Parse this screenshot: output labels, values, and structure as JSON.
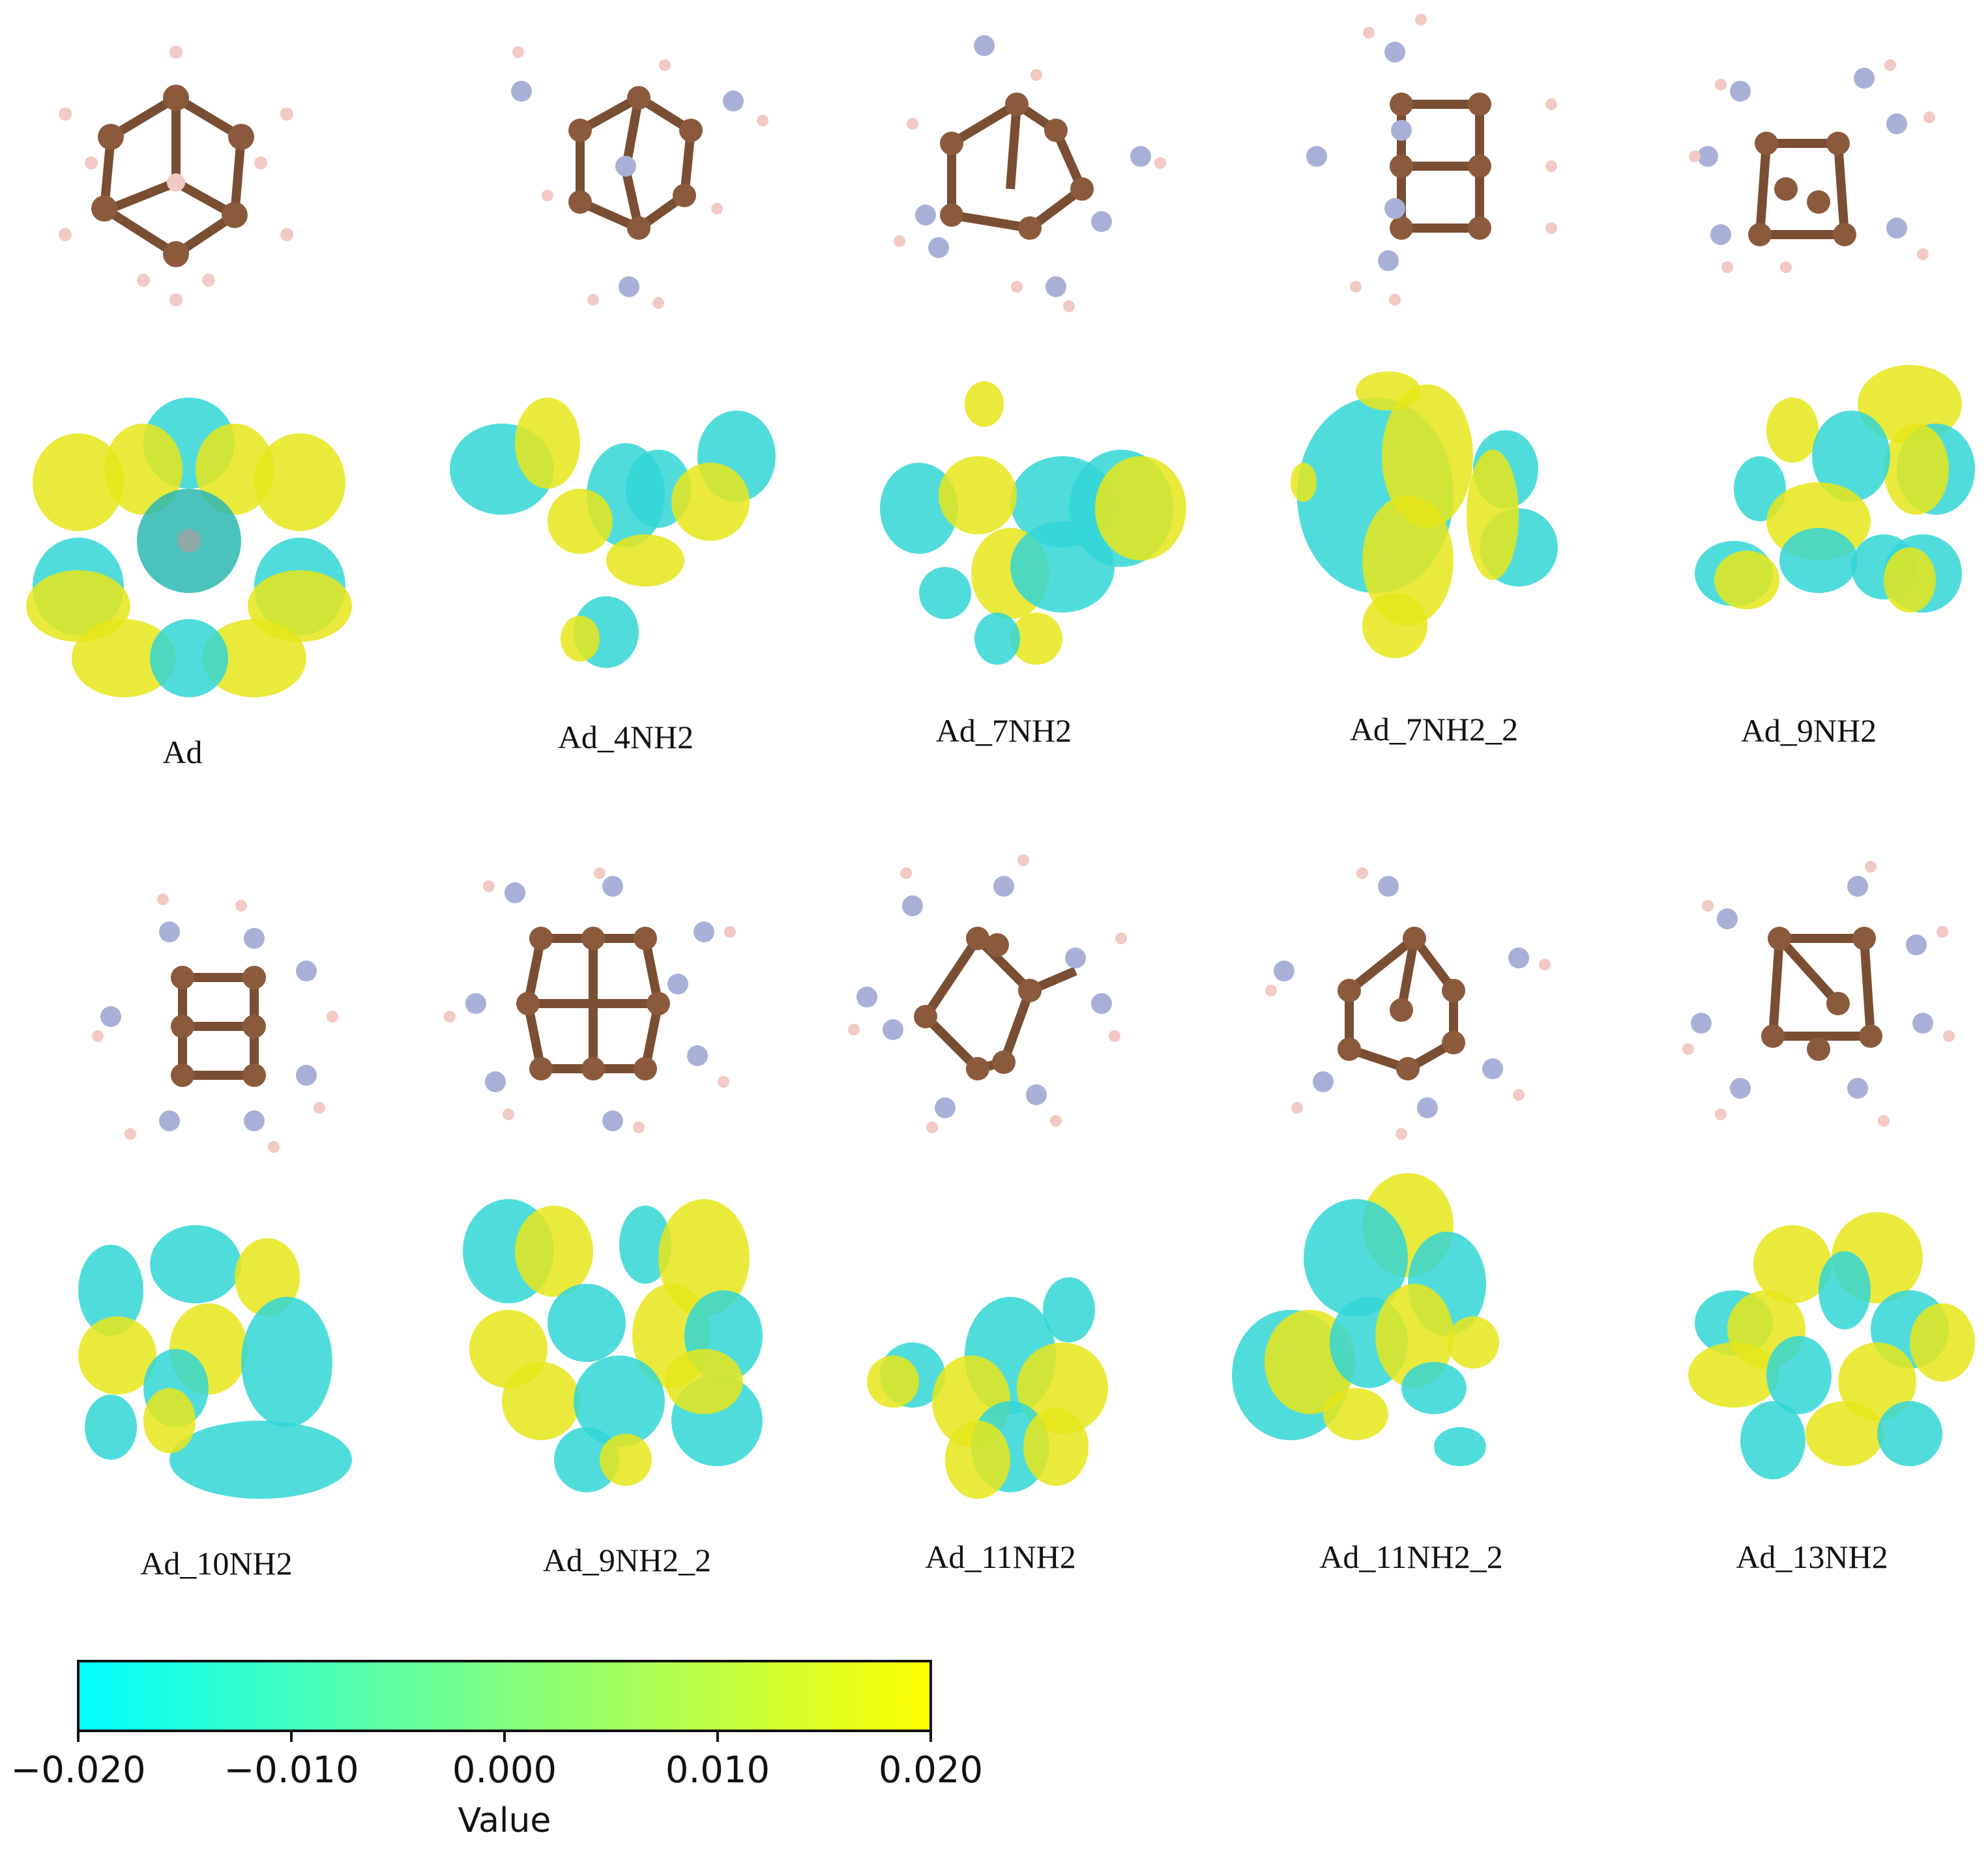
{
  "molecules": [
    {
      "label": "Ad"
    },
    {
      "label": "Ad_4NH2"
    },
    {
      "label": "Ad_7NH2"
    },
    {
      "label": "Ad_7NH2_2"
    },
    {
      "label": "Ad_9NH2"
    },
    {
      "label": "Ad_10NH2"
    },
    {
      "label": "Ad_9NH2_2"
    },
    {
      "label": "Ad_11NH2"
    },
    {
      "label": "Ad_11NH2_2"
    },
    {
      "label": "Ad_13NH2"
    }
  ],
  "colorbar": {
    "title": "Value",
    "ticks": [
      "−0.020",
      "−0.010",
      "0.000",
      "0.010",
      "0.020"
    ],
    "range": [
      -0.02,
      0.02
    ],
    "color_low": "#00FFFF",
    "color_mid": "#80FF80",
    "color_high": "#FFFF00"
  },
  "colors": {
    "carbon": "#8B5A3C",
    "hydrogen": "#F2C9C4",
    "nitrogen": "#A9B0D8",
    "iso_positive": "#E6E61A",
    "iso_negative": "#33D6D6"
  }
}
